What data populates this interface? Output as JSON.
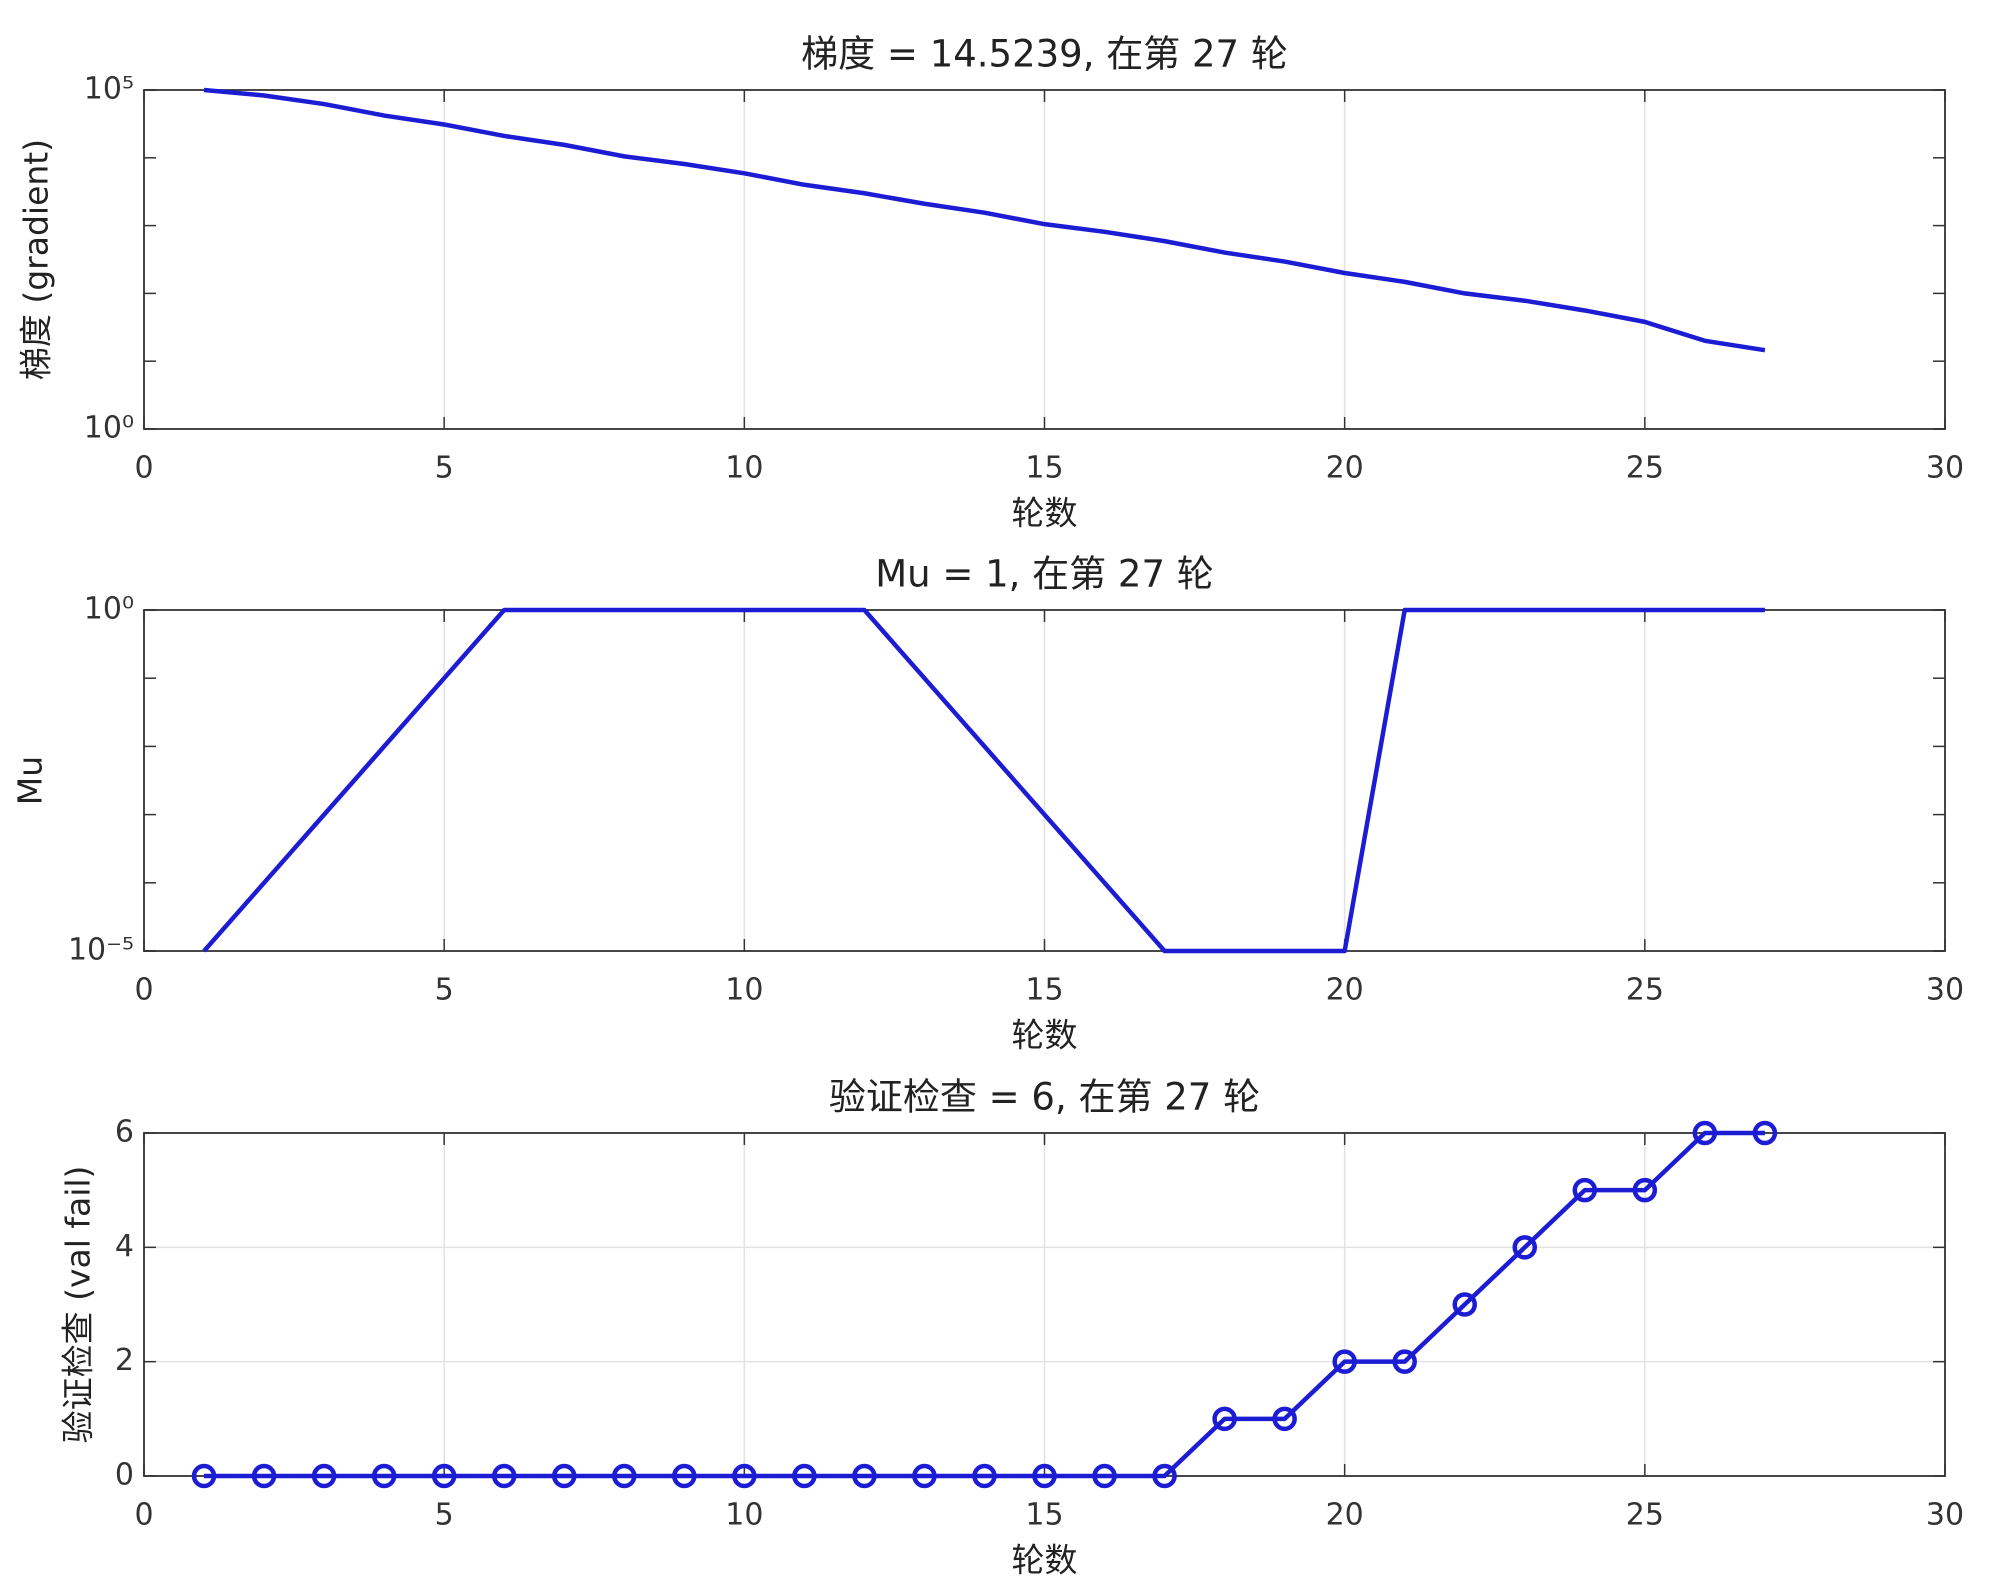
{
  "chart_data": [
    {
      "type": "line",
      "title": "梯度 = 14.5239, 在第 27 轮",
      "xlabel": "轮数",
      "ylabel": "梯度 (gradient)",
      "x": [
        1,
        2,
        3,
        4,
        5,
        6,
        7,
        8,
        9,
        10,
        11,
        12,
        13,
        14,
        15,
        16,
        17,
        18,
        19,
        20,
        21,
        22,
        23,
        24,
        25,
        26,
        27
      ],
      "series": [
        {
          "name": "梯度",
          "color": "#1c1cd4",
          "values": [
            100000,
            83000,
            62000,
            42000,
            31000,
            21000,
            15500,
            10500,
            8100,
            5900,
            4000,
            3000,
            2100,
            1550,
            1050,
            810,
            590,
            400,
            295,
            200,
            148,
            100,
            78,
            56,
            38,
            20,
            14.5239
          ]
        }
      ],
      "xlim": [
        0,
        30
      ],
      "xticks": [
        0,
        5,
        10,
        15,
        20,
        25,
        30
      ],
      "ylim": [
        1,
        100000
      ],
      "yticks": [
        {
          "value": 1,
          "label": "10⁰"
        },
        {
          "value": 100000,
          "label": "10⁵"
        }
      ],
      "yscale": "log",
      "grid": "x"
    },
    {
      "type": "line",
      "title": "Mu = 1, 在第 27 轮",
      "xlabel": "轮数",
      "ylabel": "Mu",
      "x": [
        1,
        2,
        3,
        4,
        5,
        6,
        7,
        8,
        9,
        10,
        11,
        12,
        13,
        14,
        15,
        16,
        17,
        18,
        19,
        20,
        21,
        22,
        23,
        24,
        25,
        26,
        27
      ],
      "series": [
        {
          "name": "Mu",
          "color": "#1c1cd4",
          "values": [
            1e-05,
            0.0001,
            0.001,
            0.01,
            0.1,
            1,
            1,
            1,
            1,
            1,
            1,
            1,
            0.1,
            0.01,
            0.001,
            0.0001,
            1e-05,
            1e-05,
            1e-05,
            1e-05,
            1,
            1,
            1,
            1,
            1,
            1,
            1
          ]
        }
      ],
      "xlim": [
        0,
        30
      ],
      "xticks": [
        0,
        5,
        10,
        15,
        20,
        25,
        30
      ],
      "ylim": [
        1e-05,
        1
      ],
      "yticks": [
        {
          "value": 1e-05,
          "label": "10⁻⁵"
        },
        {
          "value": 1,
          "label": "10⁰"
        }
      ],
      "yscale": "log",
      "grid": "x"
    },
    {
      "type": "line",
      "title": "验证检查 = 6, 在第 27 轮",
      "xlabel": "轮数",
      "ylabel": "验证检查 (val fail)",
      "x": [
        1,
        2,
        3,
        4,
        5,
        6,
        7,
        8,
        9,
        10,
        11,
        12,
        13,
        14,
        15,
        16,
        17,
        18,
        19,
        20,
        21,
        22,
        23,
        24,
        25,
        26,
        27
      ],
      "series": [
        {
          "name": "验证检查",
          "color": "#1c1cd4",
          "values": [
            0,
            0,
            0,
            0,
            0,
            0,
            0,
            0,
            0,
            0,
            0,
            0,
            0,
            0,
            0,
            0,
            0,
            1,
            1,
            2,
            2,
            3,
            4,
            5,
            5,
            6,
            6
          ]
        }
      ],
      "xlim": [
        0,
        30
      ],
      "xticks": [
        0,
        5,
        10,
        15,
        20,
        25,
        30
      ],
      "ylim": [
        0,
        6
      ],
      "yticks": [
        0,
        2,
        4,
        6
      ],
      "yscale": "linear",
      "grid": "both",
      "markers": "circle"
    }
  ]
}
